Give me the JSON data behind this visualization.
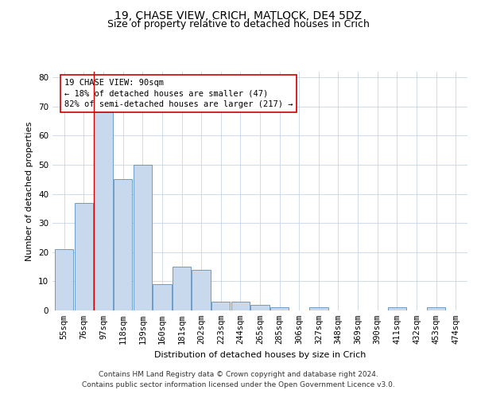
{
  "title": "19, CHASE VIEW, CRICH, MATLOCK, DE4 5DZ",
  "subtitle": "Size of property relative to detached houses in Crich",
  "xlabel": "Distribution of detached houses by size in Crich",
  "ylabel": "Number of detached properties",
  "categories": [
    "55sqm",
    "76sqm",
    "97sqm",
    "118sqm",
    "139sqm",
    "160sqm",
    "181sqm",
    "202sqm",
    "223sqm",
    "244sqm",
    "265sqm",
    "285sqm",
    "306sqm",
    "327sqm",
    "348sqm",
    "369sqm",
    "390sqm",
    "411sqm",
    "432sqm",
    "453sqm",
    "474sqm"
  ],
  "values": [
    21,
    37,
    68,
    45,
    50,
    9,
    15,
    14,
    3,
    3,
    2,
    1,
    0,
    1,
    0,
    0,
    0,
    1,
    0,
    1,
    0
  ],
  "bar_color": "#c9d9ed",
  "bar_edge_color": "#5a8fc2",
  "red_line_x": 1.5,
  "annotation_text": "19 CHASE VIEW: 90sqm\n← 18% of detached houses are smaller (47)\n82% of semi-detached houses are larger (217) →",
  "annotation_box_color": "#ffffff",
  "annotation_box_edge": "#cc0000",
  "red_line_color": "#cc0000",
  "ylim": [
    0,
    82
  ],
  "yticks": [
    0,
    10,
    20,
    30,
    40,
    50,
    60,
    70,
    80
  ],
  "footer": "Contains HM Land Registry data © Crown copyright and database right 2024.\nContains public sector information licensed under the Open Government Licence v3.0.",
  "background_color": "#ffffff",
  "grid_color": "#c8d4e8",
  "title_fontsize": 10,
  "subtitle_fontsize": 9,
  "axis_label_fontsize": 8,
  "tick_fontsize": 7.5,
  "annotation_fontsize": 7.5,
  "footer_fontsize": 6.5
}
